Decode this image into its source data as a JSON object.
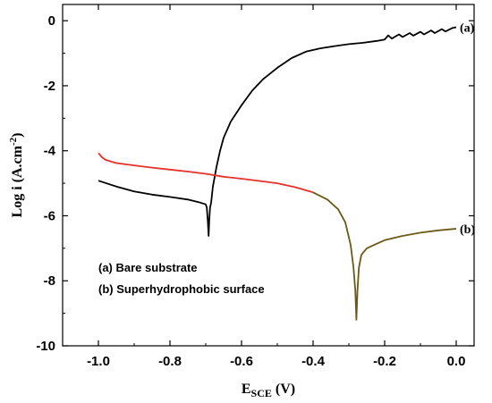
{
  "chart_data": {
    "type": "line",
    "xlabel_main": "E",
    "xlabel_sub": "SCE",
    "xlabel_unit": " (V)",
    "ylabel_main": "Log i (A.cm",
    "ylabel_sup": "-2",
    "ylabel_close": ")",
    "xlim": [
      -1.1,
      0.05
    ],
    "ylim": [
      -10,
      0.5
    ],
    "xticks": [
      -1.0,
      -0.8,
      -0.6,
      -0.4,
      -0.2,
      0.0
    ],
    "xtick_labels": [
      "-1.0",
      "-0.8",
      "-0.6",
      "-0.4",
      "-0.2",
      "0.0"
    ],
    "yticks": [
      -10,
      -8,
      -6,
      -4,
      -2,
      0
    ],
    "ytick_labels": [
      "-10",
      "-8",
      "-6",
      "-4",
      "-2",
      "0"
    ],
    "grid": false,
    "legend": {
      "placement": "lower-left",
      "entries": [
        "(a)  Bare substrate",
        "(b)  Superhydrophobic surface"
      ]
    },
    "series": [
      {
        "label": "(a)",
        "color": "#000000",
        "points": [
          [
            -1.0,
            -4.92
          ],
          [
            -0.95,
            -5.1
          ],
          [
            -0.9,
            -5.25
          ],
          [
            -0.85,
            -5.35
          ],
          [
            -0.8,
            -5.42
          ],
          [
            -0.75,
            -5.5
          ],
          [
            -0.72,
            -5.58
          ],
          [
            -0.7,
            -5.65
          ],
          [
            -0.697,
            -5.75
          ],
          [
            -0.694,
            -6.2
          ],
          [
            -0.692,
            -6.62
          ],
          [
            -0.69,
            -6.1
          ],
          [
            -0.688,
            -5.75
          ],
          [
            -0.685,
            -5.6
          ],
          [
            -0.68,
            -5.1
          ],
          [
            -0.67,
            -4.5
          ],
          [
            -0.66,
            -4.0
          ],
          [
            -0.65,
            -3.6
          ],
          [
            -0.63,
            -3.1
          ],
          [
            -0.6,
            -2.6
          ],
          [
            -0.57,
            -2.15
          ],
          [
            -0.54,
            -1.8
          ],
          [
            -0.5,
            -1.45
          ],
          [
            -0.46,
            -1.15
          ],
          [
            -0.42,
            -0.95
          ],
          [
            -0.38,
            -0.85
          ],
          [
            -0.34,
            -0.78
          ],
          [
            -0.3,
            -0.72
          ],
          [
            -0.26,
            -0.68
          ],
          [
            -0.22,
            -0.62
          ],
          [
            -0.2,
            -0.58
          ],
          [
            -0.19,
            -0.45
          ],
          [
            -0.18,
            -0.55
          ],
          [
            -0.16,
            -0.42
          ],
          [
            -0.15,
            -0.5
          ],
          [
            -0.13,
            -0.38
          ],
          [
            -0.12,
            -0.46
          ],
          [
            -0.1,
            -0.34
          ],
          [
            -0.09,
            -0.42
          ],
          [
            -0.07,
            -0.3
          ],
          [
            -0.06,
            -0.38
          ],
          [
            -0.04,
            -0.26
          ],
          [
            -0.03,
            -0.33
          ],
          [
            -0.01,
            -0.22
          ],
          [
            0.0,
            -0.2
          ]
        ]
      },
      {
        "label": "(b)",
        "color": "#e8302a",
        "color2": "#6b5a16",
        "points": [
          [
            -1.0,
            -4.07
          ],
          [
            -0.99,
            -4.2
          ],
          [
            -0.98,
            -4.28
          ],
          [
            -0.95,
            -4.38
          ],
          [
            -0.9,
            -4.45
          ],
          [
            -0.85,
            -4.52
          ],
          [
            -0.8,
            -4.58
          ],
          [
            -0.75,
            -4.64
          ],
          [
            -0.7,
            -4.71
          ],
          [
            -0.65,
            -4.8
          ],
          [
            -0.6,
            -4.86
          ],
          [
            -0.55,
            -4.93
          ],
          [
            -0.5,
            -5.0
          ],
          [
            -0.45,
            -5.12
          ],
          [
            -0.4,
            -5.28
          ],
          [
            -0.36,
            -5.5
          ],
          [
            -0.33,
            -5.8
          ],
          [
            -0.31,
            -6.2
          ],
          [
            -0.295,
            -6.9
          ],
          [
            -0.287,
            -7.6
          ],
          [
            -0.282,
            -8.3
          ],
          [
            -0.279,
            -9.2
          ],
          [
            -0.276,
            -8.3
          ],
          [
            -0.272,
            -7.6
          ],
          [
            -0.265,
            -7.2
          ],
          [
            -0.25,
            -7.0
          ],
          [
            -0.23,
            -6.9
          ],
          [
            -0.2,
            -6.75
          ],
          [
            -0.15,
            -6.62
          ],
          [
            -0.1,
            -6.52
          ],
          [
            -0.05,
            -6.45
          ],
          [
            0.0,
            -6.4
          ]
        ]
      }
    ]
  }
}
